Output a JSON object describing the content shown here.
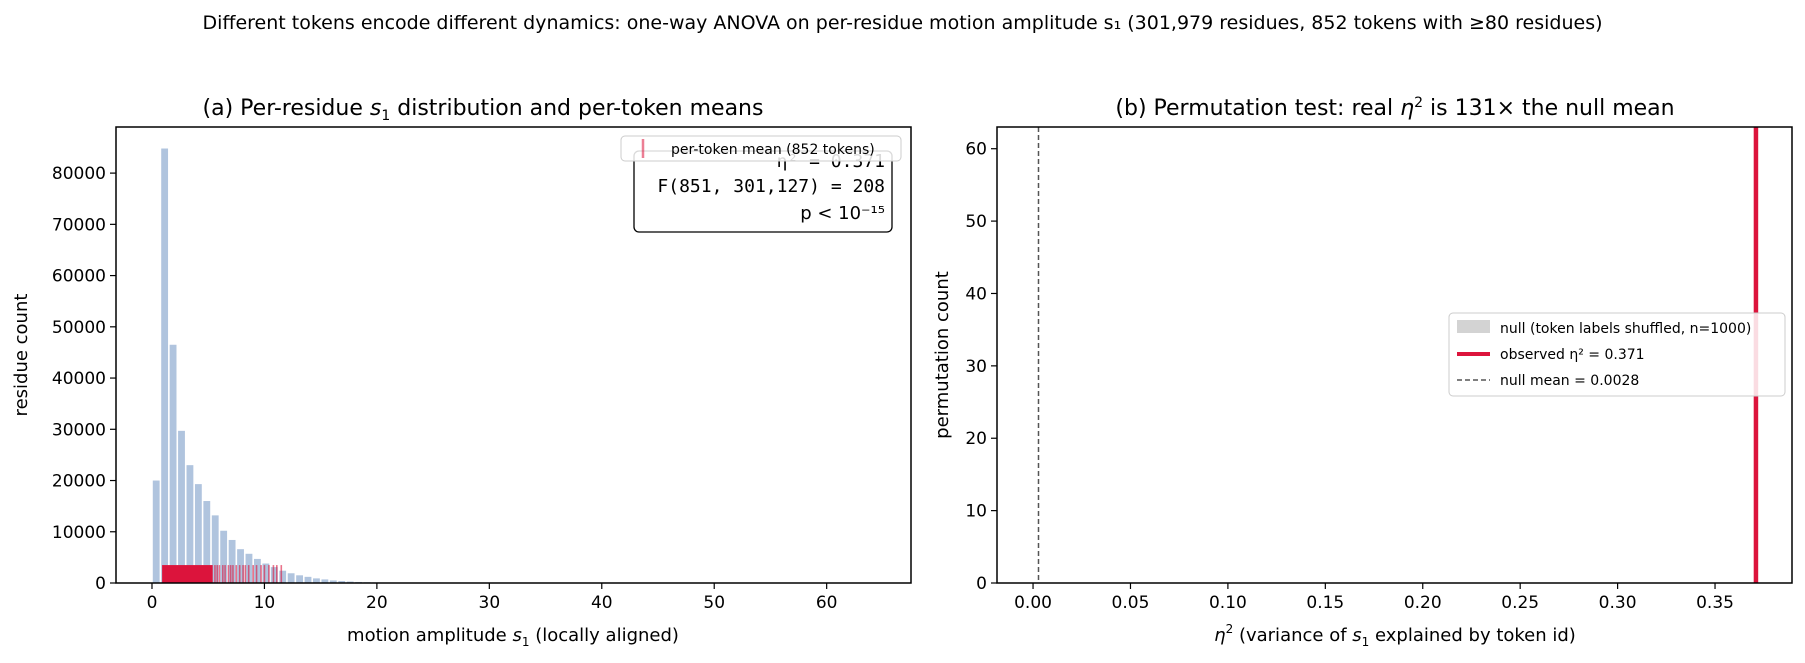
{
  "figure": {
    "suptitle": "Different tokens encode different dynamics: one-way ANOVA on per-residue motion amplitude s₁ (301,979 residues, 852 tokens with ≥80 residues)"
  },
  "colors": {
    "hist_bar": "#b0c4de",
    "token_mark": "#dc143c",
    "null_bar": "#d3d3d3",
    "null_line": "#555555"
  },
  "chart_data": [
    {
      "type": "bar",
      "title": "(a) Per-residue s₁ distribution and per-token means",
      "xlabel": "motion amplitude s₁ (locally aligned)",
      "ylabel": "residue count",
      "xlim": [
        -3.2,
        67.5
      ],
      "ylim": [
        0,
        89000
      ],
      "xticks": [
        "0",
        "10",
        "20",
        "30",
        "40",
        "50",
        "60"
      ],
      "yticks": [
        "0",
        "10000",
        "20000",
        "30000",
        "40000",
        "50000",
        "60000",
        "70000",
        "80000"
      ],
      "bin_width": 0.75,
      "bins": [
        {
          "x": 0.375,
          "count": 20000
        },
        {
          "x": 1.125,
          "count": 84800
        },
        {
          "x": 1.875,
          "count": 46500
        },
        {
          "x": 2.625,
          "count": 29700
        },
        {
          "x": 3.375,
          "count": 23000
        },
        {
          "x": 4.125,
          "count": 19300
        },
        {
          "x": 4.875,
          "count": 16000
        },
        {
          "x": 5.625,
          "count": 13200
        },
        {
          "x": 6.375,
          "count": 10200
        },
        {
          "x": 7.125,
          "count": 8400
        },
        {
          "x": 7.875,
          "count": 6600
        },
        {
          "x": 8.625,
          "count": 5700
        },
        {
          "x": 9.375,
          "count": 4700
        },
        {
          "x": 10.125,
          "count": 3800
        },
        {
          "x": 10.875,
          "count": 3100
        },
        {
          "x": 11.625,
          "count": 2400
        },
        {
          "x": 12.375,
          "count": 1900
        },
        {
          "x": 13.125,
          "count": 1500
        },
        {
          "x": 13.875,
          "count": 1200
        },
        {
          "x": 14.625,
          "count": 900
        },
        {
          "x": 15.375,
          "count": 700
        },
        {
          "x": 16.125,
          "count": 500
        },
        {
          "x": 16.875,
          "count": 380
        },
        {
          "x": 17.625,
          "count": 280
        },
        {
          "x": 18.375,
          "count": 200
        },
        {
          "x": 19.125,
          "count": 150
        },
        {
          "x": 19.875,
          "count": 110
        },
        {
          "x": 20.625,
          "count": 80
        },
        {
          "x": 21.375,
          "count": 60
        }
      ],
      "token_means": {
        "dense_range": [
          0.9,
          5.4
        ],
        "sparse_values": [
          5.6,
          5.8,
          6.0,
          6.3,
          6.5,
          6.8,
          7.0,
          7.2,
          7.5,
          7.8,
          8.1,
          8.3,
          8.6,
          9.0,
          9.3,
          9.7,
          10.0,
          10.4,
          10.8,
          11.1,
          11.5
        ],
        "mark_height": 3500
      },
      "legend": {
        "label": "per-token mean (852 tokens)",
        "position": "upper right"
      },
      "stats_box": {
        "eta_label": "η² = 0.371",
        "f_label": "F(851, 301,127) = 208",
        "p_label": "p < 10⁻¹⁵"
      }
    },
    {
      "type": "bar",
      "title": "(b) Permutation test: real η² is 131× the null mean",
      "xlabel": "η² (variance of s₁ explained by token id)",
      "ylabel": "permutation count",
      "xlim": [
        -0.0185,
        0.3895
      ],
      "ylim": [
        0,
        63
      ],
      "xticks": [
        "0.00",
        "0.05",
        "0.10",
        "0.15",
        "0.20",
        "0.25",
        "0.30",
        "0.35"
      ],
      "yticks": [
        "0",
        "10",
        "20",
        "30",
        "40",
        "50",
        "60"
      ],
      "observed": 0.371,
      "null_mean": 0.0028,
      "legend": {
        "position": "center right",
        "null_label": "null (token labels shuffled, n=1000)",
        "observed_label": "observed η² = 0.371",
        "mean_label": "null mean = 0.0028"
      }
    }
  ]
}
